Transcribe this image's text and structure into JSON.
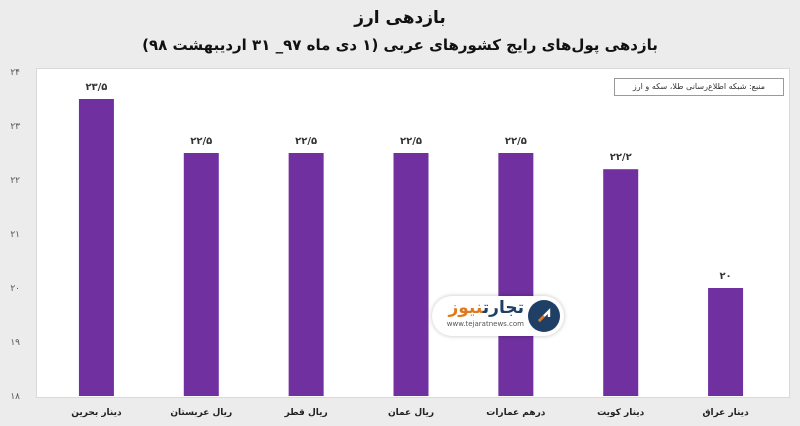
{
  "chart_data": {
    "type": "bar",
    "title": "بازدهی ارز",
    "subtitle": "بازدهی پول‌های رایج کشورهای عربی (۱ دی ماه ۹۷_ ۳۱ اردیبهشت ۹۸)",
    "categories": [
      "دینار بحرین",
      "ریال عربستان",
      "ریال قطر",
      "ریال عمان",
      "درهم عمارات",
      "دینار کویت",
      "دینار عراق"
    ],
    "values": [
      23.5,
      22.5,
      22.5,
      22.5,
      22.5,
      22.2,
      20
    ],
    "value_labels": [
      "۲۳/۵",
      "۲۲/۵",
      "۲۲/۵",
      "۲۲/۵",
      "۲۲/۵",
      "۲۲/۲",
      "۲۰"
    ],
    "ylim": [
      18,
      24
    ],
    "yticks": [
      18,
      19,
      20,
      21,
      22,
      23,
      24
    ],
    "ytick_labels": [
      "۱۸",
      "۱۹",
      "۲۰",
      "۲۱",
      "۲۲",
      "۲۳",
      "۲۴"
    ],
    "xlabel": "",
    "ylabel": "",
    "grid": false,
    "bar_color": "#7030a0"
  },
  "source": "منبع: شبکه اطلاع‌رسانی طلا، سکه و ارز",
  "logo": {
    "name_part1": "تجارت",
    "name_part2": "نیوز",
    "url": "www.tejaratnews.com"
  }
}
